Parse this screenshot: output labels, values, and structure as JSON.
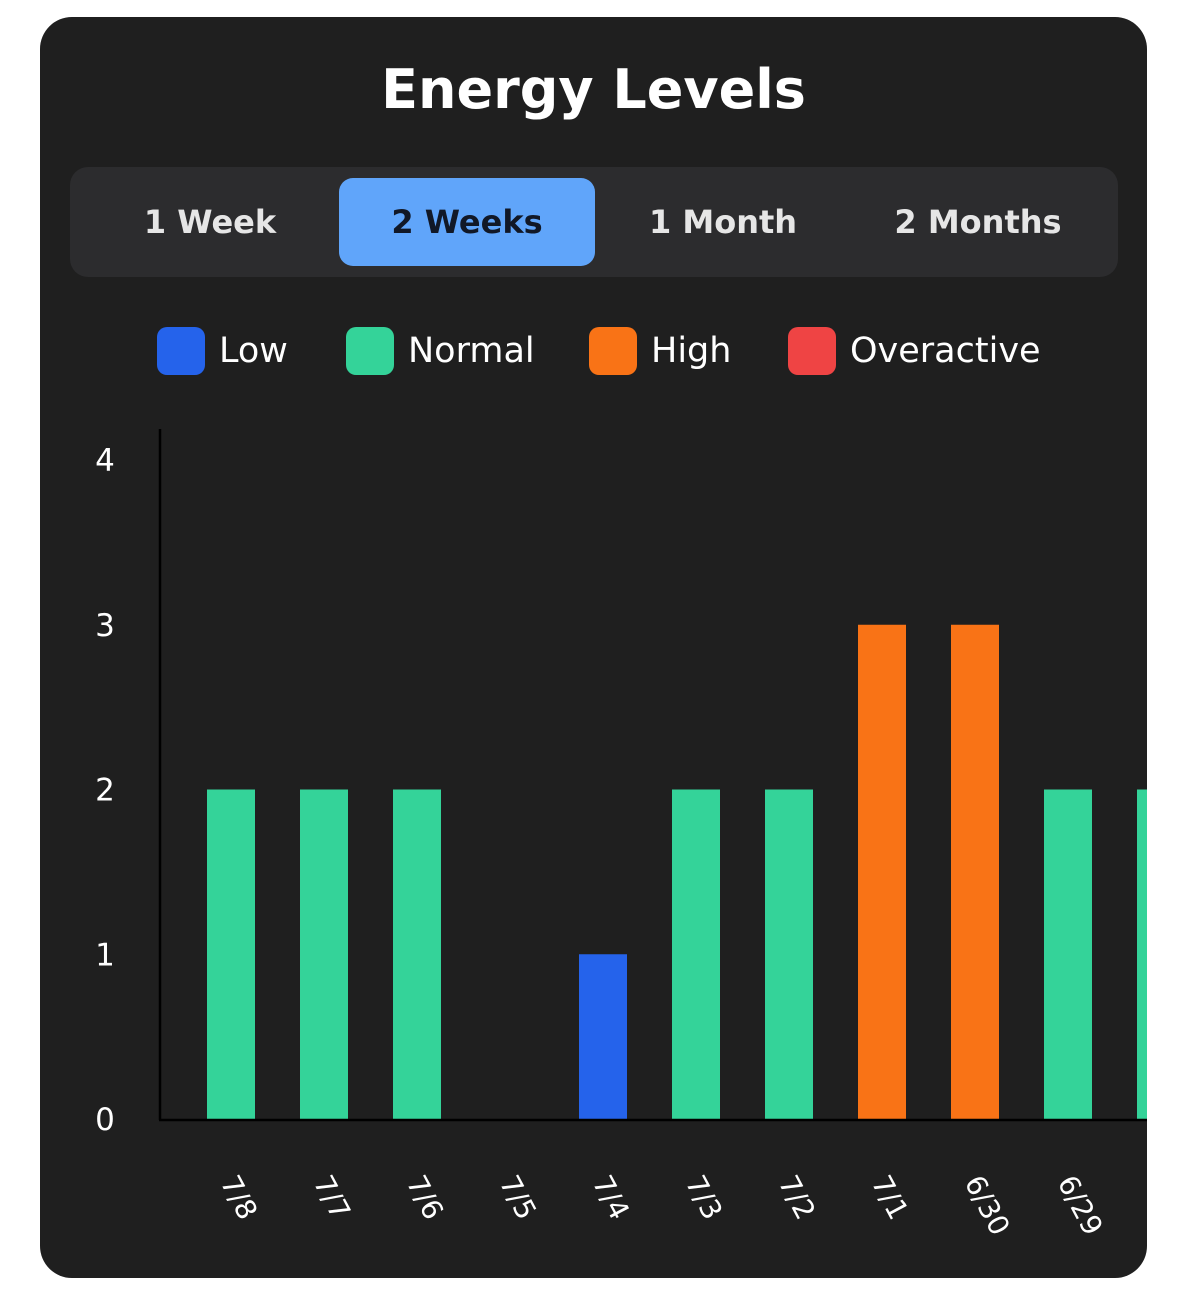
{
  "title": "Energy Levels",
  "tabs": [
    {
      "label": "1 Week",
      "active": false
    },
    {
      "label": "2 Weeks",
      "active": true
    },
    {
      "label": "1 Month",
      "active": false
    },
    {
      "label": "2 Months",
      "active": false
    }
  ],
  "legend": [
    {
      "label": "Low",
      "color": "#2563eb"
    },
    {
      "label": "Normal",
      "color": "#34d399"
    },
    {
      "label": "High",
      "color": "#f97316"
    },
    {
      "label": "Overactive",
      "color": "#ef4444"
    }
  ],
  "chart_data": {
    "type": "bar",
    "categories": [
      "7/8",
      "7/7",
      "7/6",
      "7/5",
      "7/4",
      "7/3",
      "7/2",
      "7/1",
      "6/30",
      "6/29",
      ""
    ],
    "values": [
      2,
      2,
      2,
      0,
      1,
      2,
      2,
      3,
      3,
      2,
      2
    ],
    "colors": [
      "#34d399",
      "#34d399",
      "#34d399",
      "#34d399",
      "#2563eb",
      "#34d399",
      "#34d399",
      "#f97316",
      "#f97316",
      "#34d399",
      "#34d399"
    ],
    "yticks": [
      "0",
      "1",
      "2",
      "3",
      "4"
    ],
    "ylim": [
      0,
      4.2
    ],
    "xlabel": "",
    "ylabel": "",
    "legend_position": "top",
    "grid": false
  }
}
